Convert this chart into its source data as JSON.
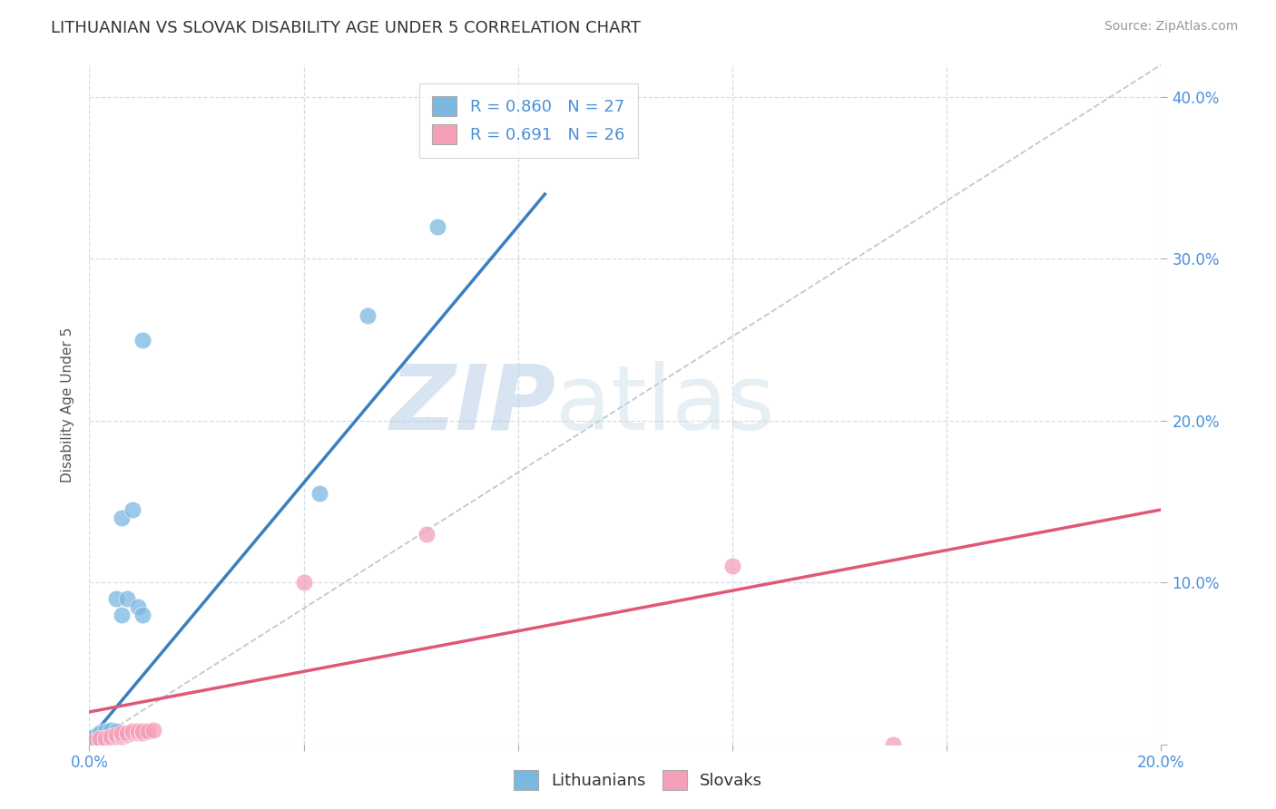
{
  "title": "LITHUANIAN VS SLOVAK DISABILITY AGE UNDER 5 CORRELATION CHART",
  "source": "Source: ZipAtlas.com",
  "ylabel": "Disability Age Under 5",
  "xlim": [
    0.0,
    0.2
  ],
  "ylim": [
    0.0,
    0.42
  ],
  "xticks": [
    0.0,
    0.04,
    0.08,
    0.12,
    0.16,
    0.2
  ],
  "yticks": [
    0.0,
    0.1,
    0.2,
    0.3,
    0.4
  ],
  "xtick_labels_show": [
    "0.0%",
    "20.0%"
  ],
  "ytick_labels_show": [
    "10.0%",
    "20.0%",
    "30.0%",
    "40.0%"
  ],
  "lithuanian_color": "#7ab8e0",
  "slovak_color": "#f4a0b8",
  "line_lit_color": "#3a7fc1",
  "line_slov_color": "#e05878",
  "ref_line_color": "#c0c8d0",
  "R_lit": 0.86,
  "N_lit": 27,
  "R_slov": 0.691,
  "N_slov": 26,
  "lit_x": [
    0.001,
    0.001,
    0.001,
    0.002,
    0.002,
    0.002,
    0.002,
    0.003,
    0.003,
    0.003,
    0.003,
    0.004,
    0.004,
    0.004,
    0.005,
    0.005,
    0.005,
    0.006,
    0.006,
    0.007,
    0.008,
    0.009,
    0.01,
    0.01,
    0.043,
    0.052,
    0.065
  ],
  "lit_y": [
    0.003,
    0.004,
    0.005,
    0.003,
    0.004,
    0.006,
    0.007,
    0.004,
    0.006,
    0.007,
    0.008,
    0.006,
    0.007,
    0.009,
    0.007,
    0.008,
    0.09,
    0.08,
    0.14,
    0.09,
    0.145,
    0.085,
    0.08,
    0.25,
    0.155,
    0.265,
    0.32
  ],
  "slov_x": [
    0.001,
    0.002,
    0.002,
    0.003,
    0.003,
    0.004,
    0.004,
    0.005,
    0.005,
    0.006,
    0.006,
    0.006,
    0.007,
    0.007,
    0.008,
    0.008,
    0.009,
    0.009,
    0.01,
    0.01,
    0.011,
    0.012,
    0.04,
    0.063,
    0.12,
    0.15
  ],
  "slov_y": [
    0.002,
    0.003,
    0.004,
    0.003,
    0.004,
    0.004,
    0.005,
    0.005,
    0.006,
    0.005,
    0.006,
    0.007,
    0.006,
    0.007,
    0.007,
    0.008,
    0.007,
    0.008,
    0.007,
    0.008,
    0.008,
    0.009,
    0.1,
    0.13,
    0.11,
    0.0
  ],
  "lit_line_x0": 0.0,
  "lit_line_y0": 0.003,
  "lit_line_x1": 0.085,
  "lit_line_y1": 0.34,
  "slov_line_x0": 0.0,
  "slov_line_y0": 0.02,
  "slov_line_x1": 0.2,
  "slov_line_y1": 0.145,
  "ref_line_x0": 0.0,
  "ref_line_y0": 0.0,
  "ref_line_x1": 0.2,
  "ref_line_y1": 0.42,
  "watermark_zip": "ZIP",
  "watermark_atlas": "atlas",
  "background_color": "#ffffff",
  "grid_color": "#d4dce8",
  "title_fontsize": 13,
  "axis_label_fontsize": 11,
  "tick_fontsize": 12,
  "legend_fontsize": 13,
  "marker_size": 180,
  "marker_alpha": 0.75
}
